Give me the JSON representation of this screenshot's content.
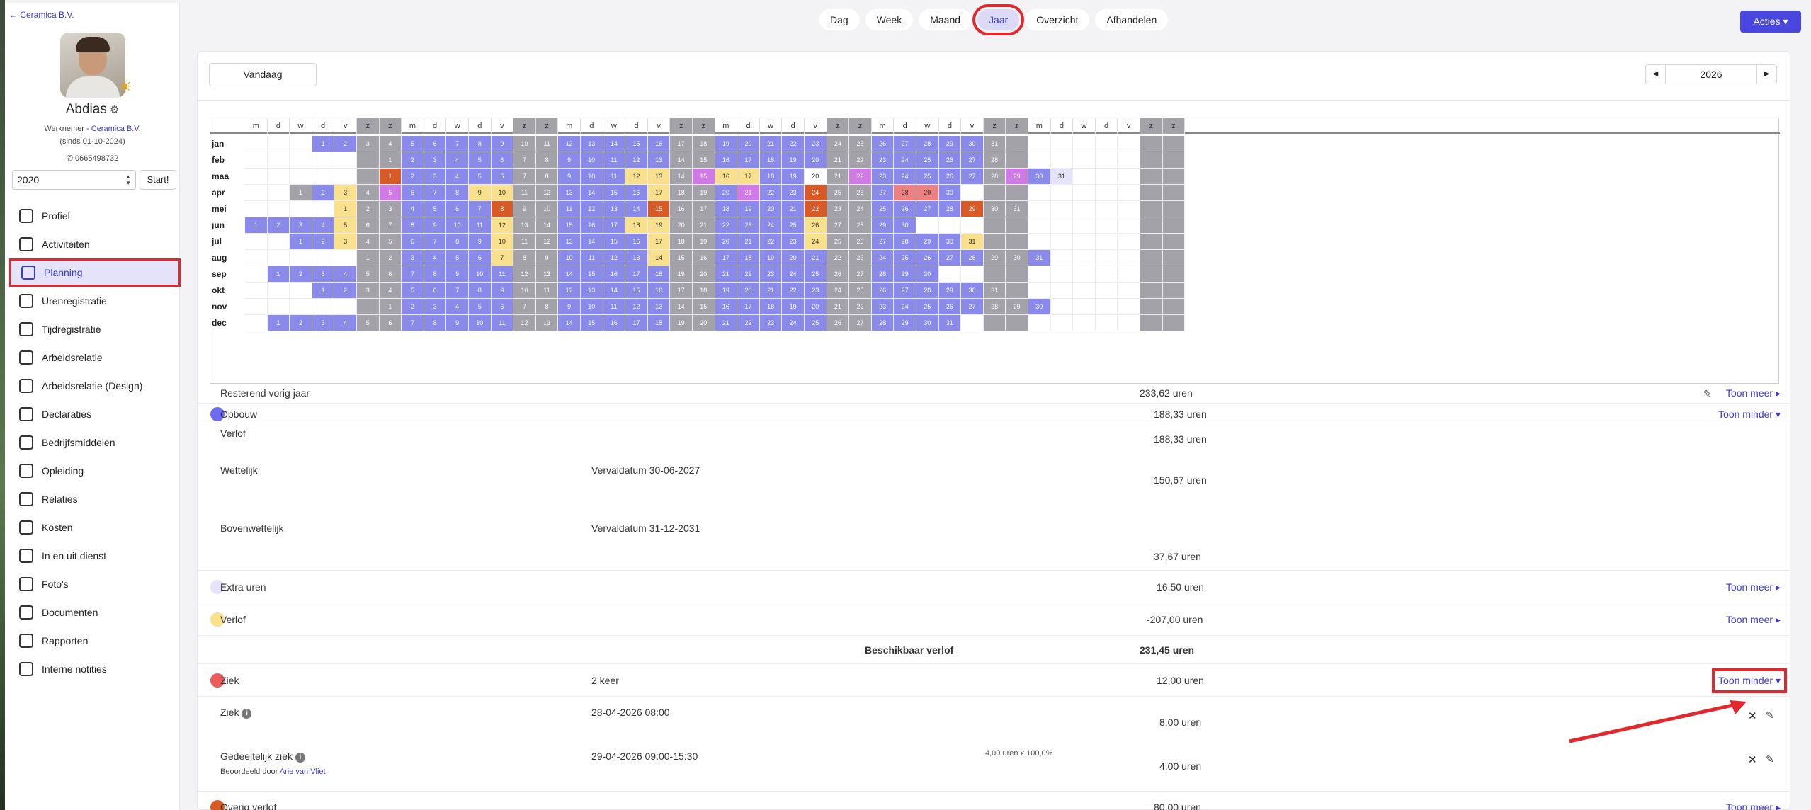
{
  "sidebar": {
    "back_label": "Ceramica B.V.",
    "user_name": "Abdias",
    "role_prefix": "Werknemer - ",
    "company": "Ceramica B.V.",
    "since": "(sinds 01-10-2024)",
    "phone": "0665498732",
    "year_value": "2020",
    "start_label": "Start!",
    "nav": [
      {
        "label": "Profiel",
        "icon": "user-card-icon",
        "active": false
      },
      {
        "label": "Activiteiten",
        "icon": "table-icon",
        "active": false
      },
      {
        "label": "Planning",
        "icon": "calendar-icon",
        "active": true
      },
      {
        "label": "Urenregistratie",
        "icon": "hourglass-icon",
        "active": false
      },
      {
        "label": "Tijdregistratie",
        "icon": "clock-icon",
        "active": false
      },
      {
        "label": "Arbeidsrelatie",
        "icon": "document-icon",
        "active": false
      },
      {
        "label": "Arbeidsrelatie (Design)",
        "icon": "document-icon",
        "active": false
      },
      {
        "label": "Declaraties",
        "icon": "euro-icon",
        "active": false
      },
      {
        "label": "Bedrijfsmiddelen",
        "icon": "key-icon",
        "active": false
      },
      {
        "label": "Opleiding",
        "icon": "book-icon",
        "active": false
      },
      {
        "label": "Relaties",
        "icon": "people-icon",
        "active": false
      },
      {
        "label": "Kosten",
        "icon": "chart-icon",
        "active": false
      },
      {
        "label": "In en uit dienst",
        "icon": "user-check-icon",
        "active": false
      },
      {
        "label": "Foto's",
        "icon": "camera-icon",
        "active": false
      },
      {
        "label": "Documenten",
        "icon": "folder-icon",
        "active": false
      },
      {
        "label": "Rapporten",
        "icon": "report-icon",
        "active": false
      },
      {
        "label": "Interne notities",
        "icon": "clipboard-icon",
        "active": false
      }
    ]
  },
  "topbar": {
    "tabs": [
      "Dag",
      "Week",
      "Maand",
      "Jaar",
      "Overzicht",
      "Afhandelen"
    ],
    "active_tab": "Jaar",
    "acties_label": "Acties"
  },
  "toolbar": {
    "today_label": "Vandaag",
    "year": "2026"
  },
  "calendar": {
    "weekday_headers": [
      "m",
      "d",
      "w",
      "d",
      "v",
      "z",
      "z",
      "m",
      "d",
      "w",
      "d",
      "v",
      "z",
      "z",
      "m",
      "d",
      "w",
      "d",
      "v",
      "z",
      "z",
      "m",
      "d",
      "w",
      "d",
      "v",
      "z",
      "z",
      "m",
      "d",
      "w",
      "d",
      "v",
      "z",
      "z",
      "m",
      "d",
      "w",
      "d",
      "v",
      "z",
      "z"
    ],
    "months": [
      {
        "name": "jan",
        "start": 3,
        "days": 31,
        "special": {}
      },
      {
        "name": "feb",
        "start": 6,
        "days": 28,
        "special": {}
      },
      {
        "name": "maa",
        "start": 6,
        "days": 31,
        "special": {
          "1": "o",
          "12": "y",
          "13": "y",
          "15": "p",
          "16": "y",
          "17": "y",
          "20": "wt",
          "22": "p",
          "29": "p",
          "31": "lw"
        }
      },
      {
        "name": "apr",
        "start": 2,
        "days": 30,
        "special": {
          "1": "we",
          "3": "y",
          "5": "p",
          "9": "y",
          "10": "y",
          "17": "y",
          "21": "p",
          "24": "o",
          "28": "r",
          "29": "r"
        }
      },
      {
        "name": "mei",
        "start": 4,
        "days": 31,
        "special": {
          "1": "y",
          "8": "o",
          "15": "o",
          "22": "o",
          "29": "o"
        }
      },
      {
        "name": "jun",
        "start": 0,
        "days": 30,
        "special": {
          "5": "y",
          "12": "y",
          "18": "y",
          "19": "y",
          "26": "y"
        }
      },
      {
        "name": "jul",
        "start": 2,
        "days": 31,
        "special": {
          "3": "y",
          "10": "y",
          "17": "y",
          "24": "y",
          "31": "y"
        }
      },
      {
        "name": "aug",
        "start": 5,
        "days": 31,
        "special": {
          "7": "y",
          "14": "y"
        }
      },
      {
        "name": "sep",
        "start": 1,
        "days": 30,
        "special": {}
      },
      {
        "name": "okt",
        "start": 3,
        "days": 31,
        "special": {}
      },
      {
        "name": "nov",
        "start": 6,
        "days": 30,
        "special": {}
      },
      {
        "name": "dec",
        "start": 1,
        "days": 31,
        "special": {}
      }
    ],
    "colors": {
      "work": "#8a8aea",
      "weekend": "#a3a2a9",
      "verlof": "#f8e08c",
      "overig": "#d85a27",
      "extra": "#d07ae8",
      "ziek": "#ed8181"
    }
  },
  "rows": {
    "resterend": {
      "label": "Resterend vorig jaar",
      "value": "233,62 uren",
      "link": "Toon meer"
    },
    "opbouw": {
      "label": "Opbouw",
      "value": "188,33 uren",
      "link": "Toon minder",
      "color": "#6c6cf0"
    },
    "opbouw_verlof": {
      "label": "Verlof",
      "value": "188,33 uren"
    },
    "wettelijk": {
      "label": "Wettelijk",
      "date": "Vervaldatum 30-06-2027",
      "value": "150,67 uren"
    },
    "bovenwettelijk": {
      "label": "Bovenwettelijk",
      "date": "Vervaldatum 31-12-2031",
      "value": "37,67 uren"
    },
    "extra": {
      "label": "Extra uren",
      "value": "16,50 uren",
      "link": "Toon meer",
      "color": "#e4e3fa"
    },
    "verlof": {
      "label": "Verlof",
      "value": "-207,00 uren",
      "link": "Toon meer",
      "color": "#f8e08c"
    },
    "beschikbaar": {
      "label": "Beschikbaar verlof",
      "value": "231,45 uren"
    },
    "ziek": {
      "label": "Ziek",
      "count": "2 keer",
      "value": "12,00 uren",
      "link": "Toon minder",
      "color": "#ed5c5c"
    },
    "ziek1": {
      "label": "Ziek",
      "date": "28-04-2026 08:00",
      "value": "8,00 uren"
    },
    "ziek2": {
      "label": "Gedeeltelijk ziek",
      "date": "29-04-2026 09:00-15:30",
      "calc": "4,00 uren x 100,0%",
      "value": "4,00 uren",
      "judged_prefix": "Beoordeeld door ",
      "judged_by": "Arie van Vliet"
    },
    "overig": {
      "label": "Overig verlof",
      "value": "80,00 uren",
      "link": "Toon meer",
      "color": "#d85a27"
    }
  }
}
